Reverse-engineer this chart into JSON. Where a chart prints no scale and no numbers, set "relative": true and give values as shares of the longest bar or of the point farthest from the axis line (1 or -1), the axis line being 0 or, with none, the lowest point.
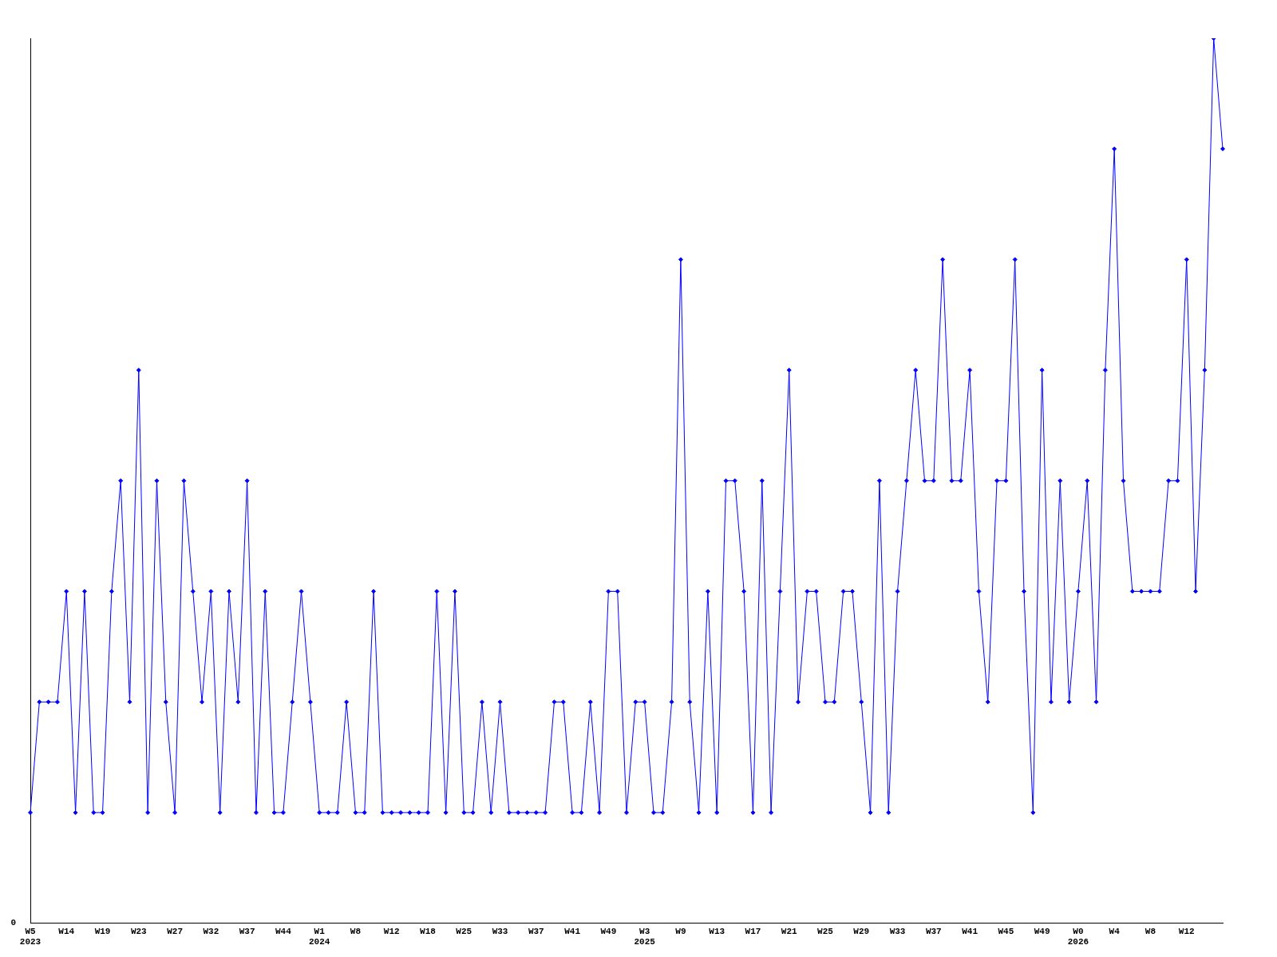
{
  "chart_data": {
    "type": "line",
    "relative": true,
    "marker": "diamond",
    "legend": false,
    "grid": false,
    "annotations": [
      "0"
    ],
    "categories": [
      "W5\n2023",
      null,
      null,
      null,
      "W14",
      null,
      null,
      null,
      "W19",
      null,
      null,
      null,
      "W23",
      null,
      null,
      null,
      "W27",
      null,
      null,
      null,
      "W32",
      null,
      null,
      null,
      "W37",
      null,
      null,
      null,
      "W44",
      null,
      null,
      null,
      "W1\n2024",
      null,
      null,
      null,
      "W8",
      null,
      null,
      null,
      "W12",
      null,
      null,
      null,
      "W18",
      null,
      null,
      null,
      "W25",
      null,
      null,
      null,
      "W33",
      null,
      null,
      null,
      "W37",
      null,
      null,
      null,
      "W41",
      null,
      null,
      null,
      "W49",
      null,
      null,
      null,
      "W3\n2025",
      null,
      null,
      null,
      "W9",
      null,
      null,
      null,
      "W13",
      null,
      null,
      null,
      "W17",
      null,
      null,
      null,
      "W21",
      null,
      null,
      null,
      "W25",
      null,
      null,
      null,
      "W29",
      null,
      null,
      null,
      "W33",
      null,
      null,
      null,
      "W37",
      null,
      null,
      null,
      "W41",
      null,
      null,
      null,
      "W45",
      null,
      null,
      null,
      "W49",
      null,
      null,
      null,
      "W0\n2026",
      null,
      null,
      null,
      "W4",
      null,
      null,
      null,
      "W8",
      null,
      null,
      null,
      "W12",
      null,
      null,
      null,
      null
    ],
    "series": [
      {
        "color": "#0000ff",
        "values": [
          0.125,
          0.25,
          0.25,
          0.25,
          0.375,
          0.125,
          0.375,
          0.125,
          0.125,
          0.375,
          0.5,
          0.25,
          0.625,
          0.125,
          0.5,
          0.25,
          0.125,
          0.5,
          0.375,
          0.25,
          0.375,
          0.125,
          0.375,
          0.25,
          0.5,
          0.125,
          0.375,
          0.125,
          0.125,
          0.25,
          0.375,
          0.25,
          0.125,
          0.125,
          0.125,
          0.25,
          0.125,
          0.125,
          0.375,
          0.125,
          0.125,
          0.125,
          0.125,
          0.125,
          0.125,
          0.375,
          0.125,
          0.375,
          0.125,
          0.125,
          0.25,
          0.125,
          0.25,
          0.125,
          0.125,
          0.125,
          0.125,
          0.125,
          0.25,
          0.25,
          0.125,
          0.125,
          0.25,
          0.125,
          0.375,
          0.375,
          0.125,
          0.25,
          0.25,
          0.125,
          0.125,
          0.25,
          0.75,
          0.25,
          0.125,
          0.375,
          0.125,
          0.5,
          0.5,
          0.375,
          0.125,
          0.5,
          0.125,
          0.375,
          0.625,
          0.25,
          0.375,
          0.375,
          0.25,
          0.25,
          0.375,
          0.375,
          0.25,
          0.125,
          0.5,
          0.125,
          0.375,
          0.5,
          0.625,
          0.5,
          0.5,
          0.75,
          0.5,
          0.5,
          0.625,
          0.375,
          0.25,
          0.5,
          0.5,
          0.75,
          0.375,
          0.125,
          0.625,
          0.25,
          0.5,
          0.25,
          0.375,
          0.5,
          0.25,
          0.625,
          0.875,
          0.5,
          0.375,
          0.375,
          0.375,
          0.375,
          0.5,
          0.5,
          0.75,
          0.375,
          0.625,
          1,
          0.875
        ]
      }
    ]
  }
}
